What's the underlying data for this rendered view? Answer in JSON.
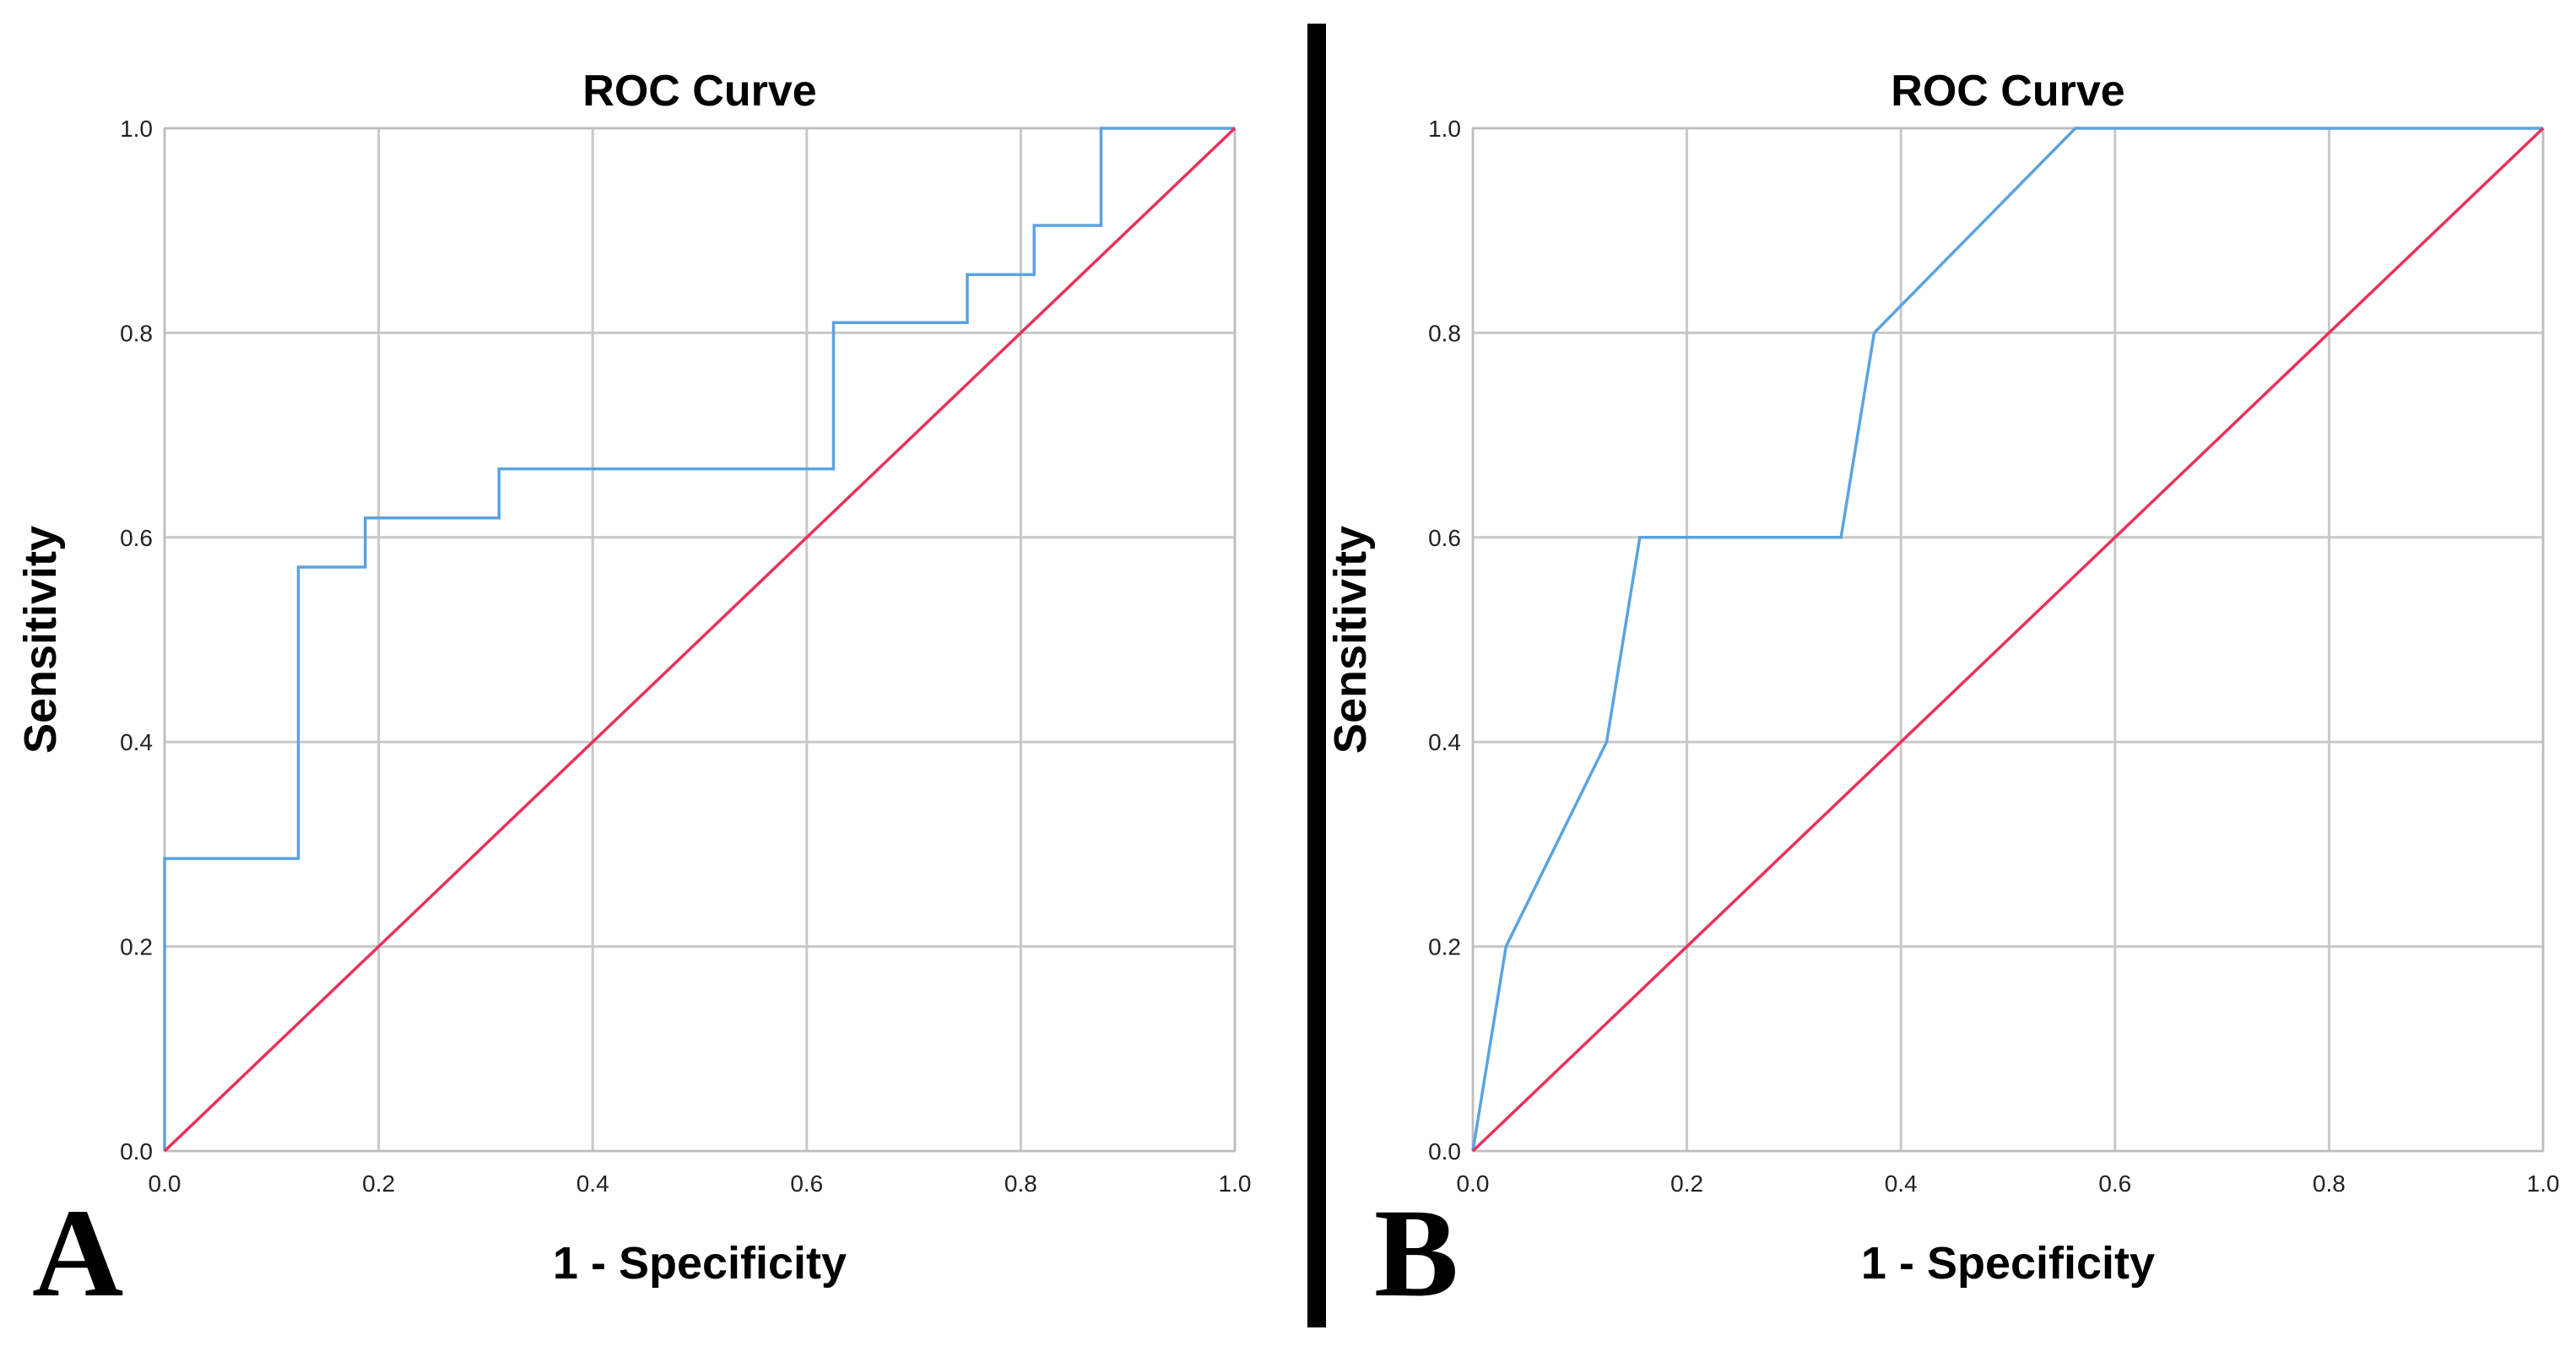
{
  "chart_data": [
    {
      "type": "line",
      "panel_label": "A",
      "title": "ROC Curve",
      "xlabel": "1 - Specificity",
      "ylabel": "Sensitivity",
      "xlim": [
        0,
        1
      ],
      "ylim": [
        0,
        1
      ],
      "x_ticks": [
        "0.0",
        "0.2",
        "0.4",
        "0.6",
        "0.8",
        "1.0"
      ],
      "y_ticks": [
        "0.0",
        "0.2",
        "0.4",
        "0.6",
        "0.8",
        "1.0"
      ],
      "grid": true,
      "legend": "none",
      "series": [
        {
          "color": "#5ba3e0",
          "x": [
            0,
            0,
            0.125,
            0.125,
            0.1875,
            0.1875,
            0.3125,
            0.3125,
            0.625,
            0.625,
            0.75,
            0.75,
            0.8125,
            0.8125,
            0.875,
            0.875,
            1.0
          ],
          "y": [
            0,
            0.286,
            0.286,
            0.571,
            0.571,
            0.619,
            0.619,
            0.667,
            0.667,
            0.81,
            0.81,
            0.857,
            0.857,
            0.905,
            0.905,
            1.0,
            1.0
          ]
        },
        {
          "color": "#e8325a",
          "x": [
            0,
            1
          ],
          "y": [
            0,
            1
          ]
        }
      ]
    },
    {
      "type": "line",
      "panel_label": "B",
      "title": "ROC Curve",
      "xlabel": "1 - Specificity",
      "ylabel": "Sensitivity",
      "xlim": [
        0,
        1
      ],
      "ylim": [
        0,
        1
      ],
      "x_ticks": [
        "0.0",
        "0.2",
        "0.4",
        "0.6",
        "0.8",
        "1.0"
      ],
      "y_ticks": [
        "0.0",
        "0.2",
        "0.4",
        "0.6",
        "0.8",
        "1.0"
      ],
      "grid": true,
      "legend": "none",
      "series": [
        {
          "color": "#5ba3e0",
          "x": [
            0,
            0.031,
            0.125,
            0.156,
            0.344,
            0.375,
            0.563,
            1.0
          ],
          "y": [
            0,
            0.2,
            0.4,
            0.6,
            0.6,
            0.8,
            1.0,
            1.0
          ]
        },
        {
          "color": "#e8325a",
          "x": [
            0,
            1
          ],
          "y": [
            0,
            1
          ]
        }
      ]
    }
  ]
}
